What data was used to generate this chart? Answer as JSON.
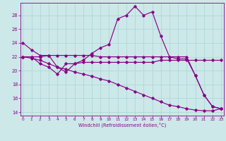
{
  "background_color": "#cce8e8",
  "grid_color": "#aad4d4",
  "line_color": "#880088",
  "xlim_min": -0.3,
  "xlim_max": 23.3,
  "ylim_min": 13.5,
  "ylim_max": 29.8,
  "yticks": [
    14,
    16,
    18,
    20,
    22,
    24,
    26,
    28
  ],
  "xticks": [
    0,
    1,
    2,
    3,
    4,
    5,
    6,
    7,
    8,
    9,
    10,
    11,
    12,
    13,
    14,
    15,
    16,
    17,
    18,
    19,
    20,
    21,
    22,
    23
  ],
  "xlabel": "Windchill (Refroidissement éolien,°C)",
  "line1_y": [
    24.0,
    23.0,
    22.2,
    22.2,
    20.5,
    19.8,
    21.0,
    21.2,
    21.2,
    21.2,
    21.2,
    21.2,
    21.2,
    21.2,
    21.2,
    21.2,
    21.5,
    21.5,
    21.5,
    21.5,
    21.5,
    21.5,
    21.5,
    21.5
  ],
  "line2_y": [
    22.0,
    22.0,
    22.0,
    22.2,
    22.2,
    22.2,
    22.2,
    22.2,
    22.2,
    22.0,
    22.0,
    22.0,
    22.0,
    22.0,
    22.0,
    22.0,
    22.0,
    22.0,
    22.0,
    22.0,
    19.3,
    16.5,
    14.8,
    14.5
  ],
  "line3_y": [
    22.0,
    22.0,
    21.0,
    20.5,
    19.5,
    21.0,
    21.0,
    21.5,
    22.5,
    23.3,
    23.8,
    27.5,
    28.0,
    29.3,
    28.0,
    28.5,
    25.0,
    22.0,
    21.7,
    21.7,
    19.3,
    16.5,
    14.8,
    14.5
  ],
  "line4_y": [
    22.0,
    21.8,
    21.5,
    21.0,
    20.5,
    20.2,
    19.8,
    19.5,
    19.2,
    18.8,
    18.5,
    18.0,
    17.5,
    17.0,
    16.5,
    16.0,
    15.5,
    15.0,
    14.8,
    14.5,
    14.3,
    14.2,
    14.2,
    14.5
  ]
}
